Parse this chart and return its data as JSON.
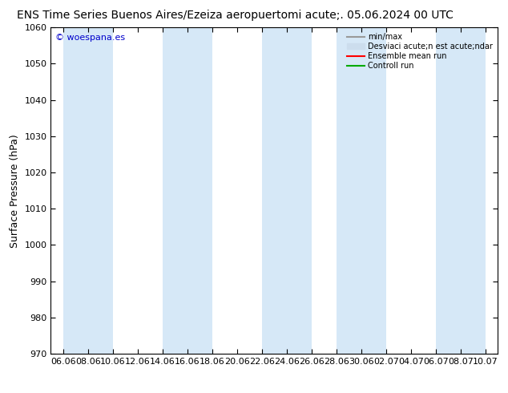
{
  "title_left": "ENS Time Series Buenos Aires/Ezeiza aeropuerto",
  "title_right": "mi acute;. 05.06.2024 00 UTC",
  "ylabel": "Surface Pressure (hPa)",
  "ylim": [
    970,
    1060
  ],
  "yticks": [
    970,
    980,
    990,
    1000,
    1010,
    1020,
    1030,
    1040,
    1050,
    1060
  ],
  "xtick_labels": [
    "06.06",
    "08.06",
    "10.06",
    "12.06",
    "14.06",
    "16.06",
    "18.06",
    "20.06",
    "22.06",
    "24.06",
    "26.06",
    "28.06",
    "30.06",
    "02.07",
    "04.07",
    "06.07",
    "08.07",
    "10.07"
  ],
  "background_color": "#ffffff",
  "plot_bg_color": "#ffffff",
  "shaded_band_color": "#d6e8f7",
  "shaded_band_alpha": 1.0,
  "watermark": "© woespana.es",
  "watermark_color": "#0000cc",
  "legend_items": [
    {
      "label": "min/max",
      "color": "#999999",
      "lw": 1.5,
      "style": "line"
    },
    {
      "label": "Desviaci acute;n est acute;ndar",
      "color": "#ccdded",
      "lw": 8,
      "style": "bar"
    },
    {
      "label": "Ensemble mean run",
      "color": "#ff0000",
      "lw": 1.5,
      "style": "line"
    },
    {
      "label": "Controll run",
      "color": "#00aa00",
      "lw": 1.5,
      "style": "line"
    }
  ],
  "title_fontsize": 10,
  "axis_fontsize": 9,
  "tick_fontsize": 8
}
